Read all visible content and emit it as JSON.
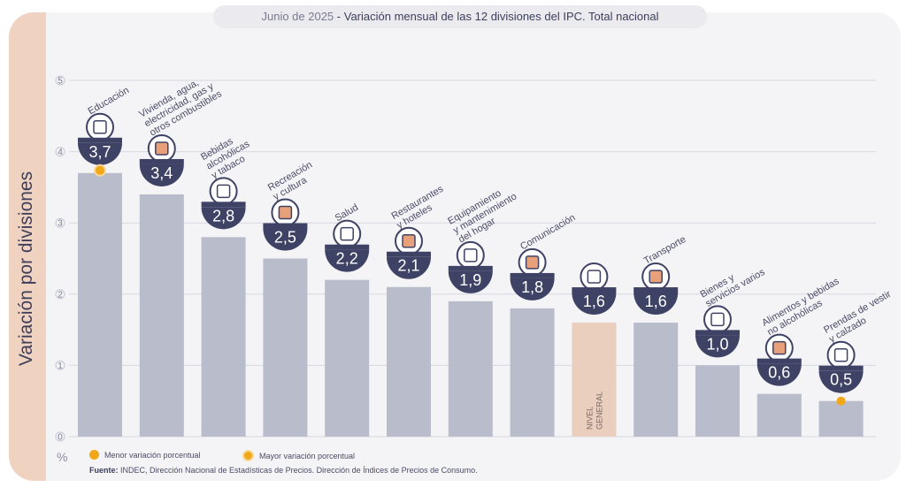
{
  "title": {
    "date": "Junio de 2025",
    "separator": " - ",
    "text": "Variación mensual de las 12 divisiones del IPC. Total nacional"
  },
  "legend": {
    "min_label": "Menor variación porcentual",
    "max_label": "Mayor variación porcentual"
  },
  "source": {
    "label": "Fuente:",
    "text": " INDEC, Dirección Nacional de Estadísticas de Precios. Dirección de Índices de Precios de Consumo."
  },
  "colors": {
    "bar": "#b8bccb",
    "highlight_bar": "#eacfbf",
    "bubble": "#3e4366",
    "accent": "#f0a818",
    "grid": "#d6d8e2",
    "text": "#4a4c66"
  },
  "icons": [
    "book-notebook-icon",
    "lightbulb-tools-icon",
    "bottle-glass-icon",
    "umbrella-sun-icon",
    "first-aid-icon",
    "cutlery-plate-icon",
    "air-conditioner-icon",
    "smartphone-icon",
    "shopping-basket-icon",
    "bus-card-icon",
    "comb-scissors-icon",
    "chicken-food-icon",
    "tshirt-icon"
  ],
  "chart_data": {
    "type": "bar",
    "ylabel": "Variación por divisiones",
    "yunit": "%",
    "ylim": [
      0,
      5
    ],
    "yticks": [
      "0",
      "1",
      "2",
      "3",
      "4",
      "5"
    ],
    "grid": true,
    "categories": [
      "Educación",
      "Vivienda, agua, electricidad, gas y otros combustibles",
      "Bebidas alcohólicas y tabaco",
      "Recreación y cultura",
      "Salud",
      "Restaurantes y hoteles",
      "Equipamiento y mantenimiento del hogar",
      "Comunicación",
      "Nivel general",
      "Transporte",
      "Bienes y servicios varios",
      "Alimentos y bebidas no alcohólicas",
      "Prendas de vestir y calzado"
    ],
    "category_lines": [
      [
        "Educación"
      ],
      [
        "Vivienda, agua,",
        "electricidad, gas y",
        "otros combustibles"
      ],
      [
        "Bebidas",
        "alcohólicas",
        "y tabaco"
      ],
      [
        "Recreación",
        "y cultura"
      ],
      [
        "Salud"
      ],
      [
        "Restaurantes",
        "y hoteles"
      ],
      [
        "Equipamiento",
        "y mantenimiento",
        "del hogar"
      ],
      [
        "Comunicación"
      ],
      [
        "NIVEL",
        "GENERAL"
      ],
      [
        "Transporte"
      ],
      [
        "Bienes y",
        "servicios varios"
      ],
      [
        "Alimentos y bebidas",
        "no alcohólicas"
      ],
      [
        "Prendas de vestir",
        "y calzado"
      ]
    ],
    "values": [
      3.7,
      3.4,
      2.8,
      2.5,
      2.2,
      2.1,
      1.9,
      1.8,
      1.6,
      1.6,
      1.0,
      0.6,
      0.5
    ],
    "value_labels": [
      "3,7",
      "3,4",
      "2,8",
      "2,5",
      "2,2",
      "2,1",
      "1,9",
      "1,8",
      "1,6",
      "1,6",
      "1,0",
      "0,6",
      "0,5"
    ],
    "highlight": "Nivel general",
    "max_category": "Educación",
    "min_category": "Prendas de vestir y calzado"
  }
}
